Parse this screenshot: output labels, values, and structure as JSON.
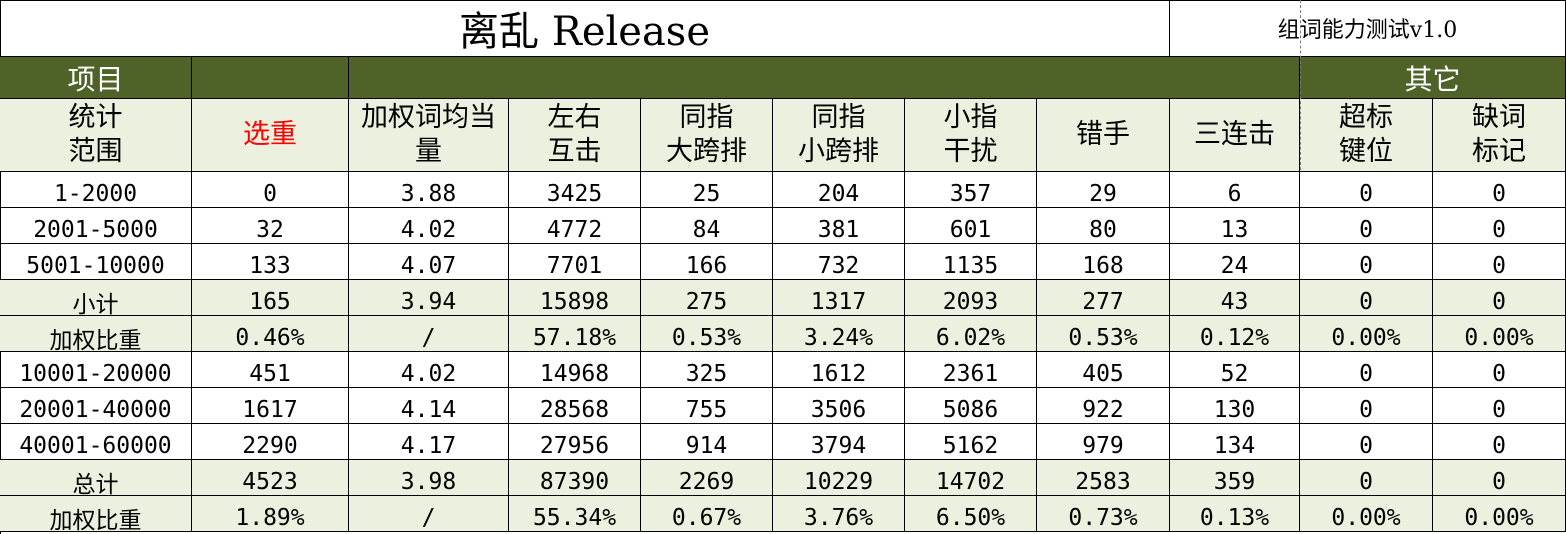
{
  "title": "离乱 Release",
  "subtitle": "组词能力测试v1.0",
  "band": {
    "item_label": "项目",
    "other_label": "其它"
  },
  "headers": [
    {
      "label": "统计\n范围",
      "red": false
    },
    {
      "label": "选重",
      "red": true
    },
    {
      "label": "加权词均当\n量",
      "red": false
    },
    {
      "label": "左右\n互击",
      "red": false
    },
    {
      "label": "同指\n大跨排",
      "red": false
    },
    {
      "label": "同指\n小跨排",
      "red": false
    },
    {
      "label": "小指\n干扰",
      "red": false
    },
    {
      "label": "错手",
      "red": false
    },
    {
      "label": "三连击",
      "red": false
    },
    {
      "label": "超标\n键位",
      "red": false
    },
    {
      "label": "缺词\n标记",
      "red": false
    }
  ],
  "rows": [
    {
      "shaded": false,
      "cells": [
        "1-2000",
        "0",
        "3.88",
        "3425",
        "25",
        "204",
        "357",
        "29",
        "6",
        "0",
        "0"
      ]
    },
    {
      "shaded": false,
      "cells": [
        "2001-5000",
        "32",
        "4.02",
        "4772",
        "84",
        "381",
        "601",
        "80",
        "13",
        "0",
        "0"
      ]
    },
    {
      "shaded": false,
      "cells": [
        "5001-10000",
        "133",
        "4.07",
        "7701",
        "166",
        "732",
        "1135",
        "168",
        "24",
        "0",
        "0"
      ]
    },
    {
      "shaded": true,
      "cells": [
        "小计",
        "165",
        "3.94",
        "15898",
        "275",
        "1317",
        "2093",
        "277",
        "43",
        "0",
        "0"
      ]
    },
    {
      "shaded": true,
      "cells": [
        "加权比重",
        "0.46%",
        "/",
        "57.18%",
        "0.53%",
        "3.24%",
        "6.02%",
        "0.53%",
        "0.12%",
        "0.00%",
        "0.00%"
      ]
    },
    {
      "shaded": false,
      "cells": [
        "10001-20000",
        "451",
        "4.02",
        "14968",
        "325",
        "1612",
        "2361",
        "405",
        "52",
        "0",
        "0"
      ]
    },
    {
      "shaded": false,
      "cells": [
        "20001-40000",
        "1617",
        "4.14",
        "28568",
        "755",
        "3506",
        "5086",
        "922",
        "130",
        "0",
        "0"
      ]
    },
    {
      "shaded": false,
      "cells": [
        "40001-60000",
        "2290",
        "4.17",
        "27956",
        "914",
        "3794",
        "5162",
        "979",
        "134",
        "0",
        "0"
      ]
    },
    {
      "shaded": true,
      "cells": [
        "总计",
        "4523",
        "3.98",
        "87390",
        "2269",
        "10229",
        "14702",
        "2583",
        "359",
        "0",
        "0"
      ]
    },
    {
      "shaded": true,
      "cells": [
        "加权比重",
        "1.89%",
        "/",
        "55.34%",
        "0.67%",
        "3.76%",
        "6.50%",
        "0.73%",
        "0.13%",
        "0.00%",
        "0.00%"
      ]
    }
  ]
}
